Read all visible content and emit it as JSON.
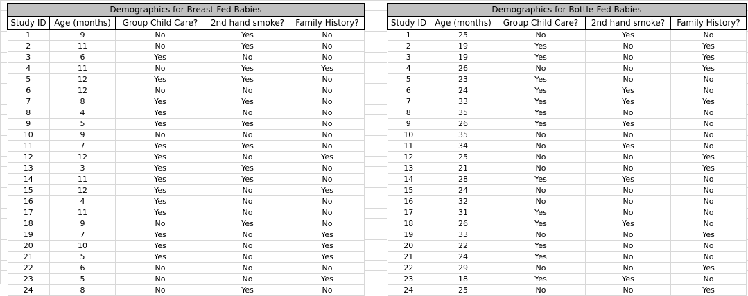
{
  "left": {
    "title": "Demographics for Breast-Fed Babies",
    "headers": [
      "Study ID",
      "Age (months)",
      "Group Child Care?",
      "2nd hand smoke?",
      "Family History?"
    ],
    "rows": [
      [
        "1",
        "9",
        "No",
        "Yes",
        "No"
      ],
      [
        "2",
        "11",
        "No",
        "Yes",
        "No"
      ],
      [
        "3",
        "6",
        "Yes",
        "No",
        "No"
      ],
      [
        "4",
        "11",
        "No",
        "Yes",
        "Yes"
      ],
      [
        "5",
        "12",
        "Yes",
        "Yes",
        "No"
      ],
      [
        "6",
        "12",
        "No",
        "No",
        "No"
      ],
      [
        "7",
        "8",
        "Yes",
        "Yes",
        "No"
      ],
      [
        "8",
        "4",
        "Yes",
        "No",
        "No"
      ],
      [
        "9",
        "5",
        "Yes",
        "Yes",
        "No"
      ],
      [
        "10",
        "9",
        "No",
        "No",
        "No"
      ],
      [
        "11",
        "7",
        "Yes",
        "Yes",
        "No"
      ],
      [
        "12",
        "12",
        "Yes",
        "No",
        "Yes"
      ],
      [
        "13",
        "3",
        "Yes",
        "Yes",
        "No"
      ],
      [
        "14",
        "11",
        "Yes",
        "Yes",
        "No"
      ],
      [
        "15",
        "12",
        "Yes",
        "No",
        "Yes"
      ],
      [
        "16",
        "4",
        "Yes",
        "No",
        "No"
      ],
      [
        "17",
        "11",
        "Yes",
        "No",
        "No"
      ],
      [
        "18",
        "9",
        "No",
        "Yes",
        "No"
      ],
      [
        "19",
        "7",
        "Yes",
        "No",
        "Yes"
      ],
      [
        "20",
        "10",
        "Yes",
        "No",
        "Yes"
      ],
      [
        "21",
        "5",
        "Yes",
        "No",
        "Yes"
      ],
      [
        "22",
        "6",
        "No",
        "No",
        "No"
      ],
      [
        "23",
        "5",
        "No",
        "No",
        "Yes"
      ],
      [
        "24",
        "8",
        "No",
        "Yes",
        "No"
      ]
    ]
  },
  "right": {
    "title": "Demographics for Bottle-Fed Babies",
    "headers": [
      "Study ID",
      "Age (months)",
      "Group Child Care?",
      "2nd hand smoke?",
      "Family History?"
    ],
    "rows": [
      [
        "1",
        "25",
        "No",
        "Yes",
        "No"
      ],
      [
        "2",
        "19",
        "Yes",
        "No",
        "Yes"
      ],
      [
        "3",
        "19",
        "Yes",
        "No",
        "Yes"
      ],
      [
        "4",
        "26",
        "No",
        "No",
        "Yes"
      ],
      [
        "5",
        "23",
        "Yes",
        "No",
        "No"
      ],
      [
        "6",
        "24",
        "Yes",
        "Yes",
        "No"
      ],
      [
        "7",
        "33",
        "Yes",
        "Yes",
        "Yes"
      ],
      [
        "8",
        "35",
        "Yes",
        "No",
        "No"
      ],
      [
        "9",
        "26",
        "Yes",
        "Yes",
        "No"
      ],
      [
        "10",
        "35",
        "No",
        "No",
        "No"
      ],
      [
        "11",
        "34",
        "No",
        "Yes",
        "No"
      ],
      [
        "12",
        "25",
        "No",
        "No",
        "Yes"
      ],
      [
        "13",
        "21",
        "No",
        "No",
        "Yes"
      ],
      [
        "14",
        "28",
        "Yes",
        "Yes",
        "No"
      ],
      [
        "15",
        "24",
        "No",
        "No",
        "No"
      ],
      [
        "16",
        "32",
        "No",
        "No",
        "No"
      ],
      [
        "17",
        "31",
        "Yes",
        "No",
        "No"
      ],
      [
        "18",
        "26",
        "Yes",
        "Yes",
        "No"
      ],
      [
        "19",
        "33",
        "No",
        "No",
        "Yes"
      ],
      [
        "20",
        "22",
        "Yes",
        "No",
        "No"
      ],
      [
        "21",
        "24",
        "Yes",
        "No",
        "No"
      ],
      [
        "22",
        "29",
        "No",
        "No",
        "Yes"
      ],
      [
        "23",
        "18",
        "Yes",
        "Yes",
        "No"
      ],
      [
        "24",
        "25",
        "No",
        "No",
        "Yes"
      ]
    ]
  }
}
